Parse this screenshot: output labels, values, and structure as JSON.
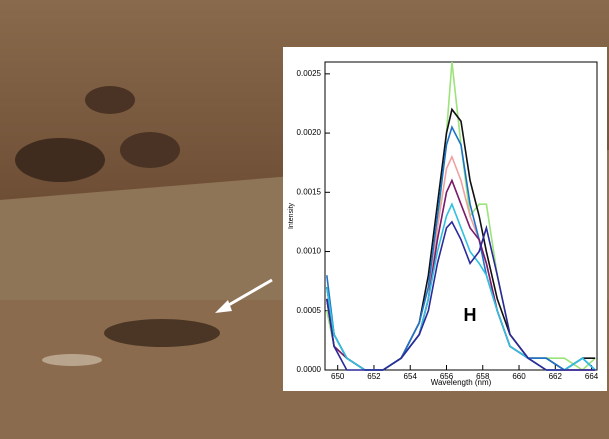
{
  "chart_data": {
    "type": "line",
    "x_label": "Wavelength (nm)",
    "y_label": "Intensity",
    "annotation": "H",
    "x": [
      649.4,
      649.8,
      650.5,
      651.5,
      652.5,
      653.5,
      654.5,
      655.0,
      655.5,
      656.0,
      656.3,
      656.8,
      657.3,
      657.8,
      658.2,
      658.8,
      659.5,
      660.5,
      661.5,
      662.5,
      663.5,
      664.2
    ],
    "xlim": [
      649.3,
      664.3
    ],
    "xticks": [
      650,
      652,
      654,
      656,
      658,
      660,
      662,
      664
    ],
    "ylim": [
      0,
      0.0026
    ],
    "yticks": [
      {
        "value": 0,
        "label": "0.0000"
      },
      {
        "value": 0.0005,
        "label": "0.0005"
      },
      {
        "value": 0.001,
        "label": "0.0010"
      },
      {
        "value": 0.0015,
        "label": "0.0015"
      },
      {
        "value": 0.002,
        "label": "0.0020"
      },
      {
        "value": 0.0025,
        "label": "0.0025"
      }
    ],
    "series": [
      {
        "color": "#9be37a",
        "values": [
          0.0005,
          0.0002,
          0.0001,
          0,
          0,
          0.0001,
          0.0003,
          0.0006,
          0.0012,
          0.002,
          0.0026,
          0.0019,
          0.0013,
          0.0014,
          0.0014,
          0.0008,
          0.0003,
          0.0001,
          0.0001,
          0.0001,
          0,
          0.0001
        ]
      },
      {
        "color": "#f0a0a0",
        "values": [
          0.0006,
          0.0002,
          0.0001,
          0,
          0,
          0.0001,
          0.0003,
          0.0006,
          0.0012,
          0.0017,
          0.0018,
          0.0016,
          0.0013,
          0.0011,
          0.0009,
          0.0005,
          0.0002,
          0.0001,
          0,
          0,
          0,
          0
        ]
      },
      {
        "color": "#111111",
        "values": [
          0.0007,
          0.0003,
          0.0001,
          0,
          0,
          0.0001,
          0.0004,
          0.0008,
          0.0014,
          0.002,
          0.0022,
          0.0021,
          0.0016,
          0.0013,
          0.001,
          0.0006,
          0.0003,
          0.0001,
          0.0001,
          0,
          0.0001,
          0.0001
        ]
      },
      {
        "color": "#1e73c8",
        "values": [
          0.0008,
          0.0003,
          0.0001,
          0,
          0,
          0.0001,
          0.0004,
          0.0007,
          0.0013,
          0.0019,
          0.00205,
          0.0019,
          0.0014,
          0.0011,
          0.0008,
          0.0005,
          0.0002,
          0.0001,
          0.0001,
          0,
          0.0001,
          0
        ]
      },
      {
        "color": "#7a1a6a",
        "values": [
          0.0006,
          0.0002,
          0.0001,
          0,
          0,
          0.0001,
          0.0003,
          0.0006,
          0.0011,
          0.0015,
          0.0016,
          0.0014,
          0.0012,
          0.0011,
          0.0009,
          0.0005,
          0.0002,
          0.0001,
          0,
          0,
          0,
          0
        ]
      },
      {
        "color": "#30c0e0",
        "values": [
          0.0007,
          0.0003,
          0.0001,
          0,
          0,
          0.0001,
          0.0003,
          0.0006,
          0.001,
          0.0013,
          0.0014,
          0.0012,
          0.001,
          0.0009,
          0.0008,
          0.0005,
          0.0002,
          0.0001,
          0,
          0,
          0.0001,
          0
        ]
      },
      {
        "color": "#2a2a9a",
        "values": [
          0.0006,
          0.0002,
          0,
          0,
          0,
          0.0001,
          0.0003,
          0.0005,
          0.0009,
          0.0012,
          0.00125,
          0.0011,
          0.0009,
          0.001,
          0.0012,
          0.0008,
          0.0003,
          0.0001,
          0,
          0,
          0,
          0
        ]
      }
    ]
  }
}
